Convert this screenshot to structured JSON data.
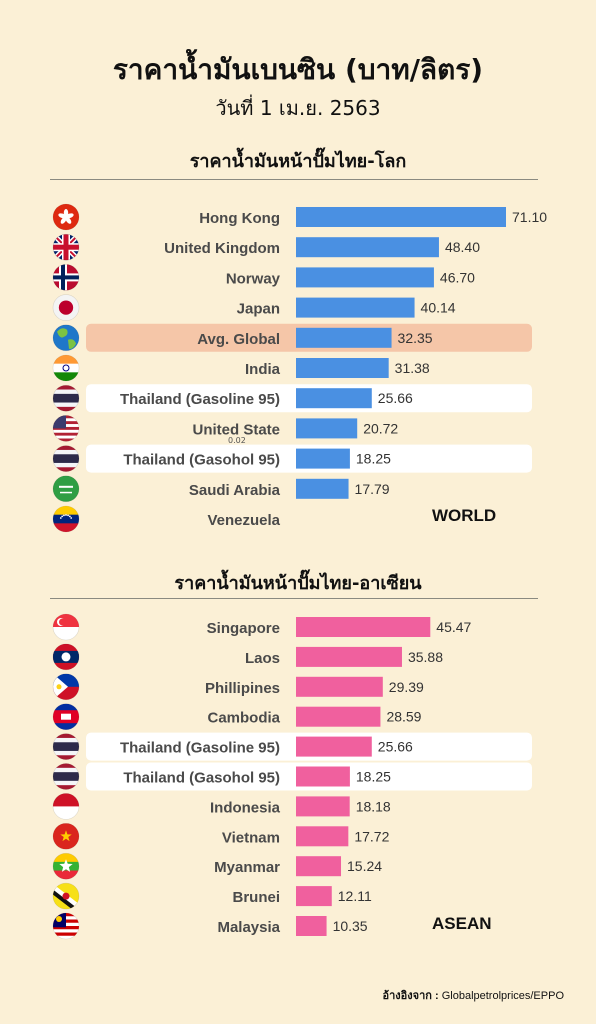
{
  "header": {
    "title": "ราคาน้ำมันเบนซิน (บาท/ลิตร)",
    "subtitle": "วันที่ 1 เม.ย. 2563"
  },
  "sections": [
    {
      "heading": "ราคาน้ำมันหน้าปั๊มไทย-โลก",
      "tag": "WORLD"
    },
    {
      "heading": "ราคาน้ำมันหน้าปั๊มไทย-อาเซียน",
      "tag": "ASEAN"
    }
  ],
  "stray_label": "0.02",
  "source": {
    "label": "อ้างอิงจาก :",
    "text": "Globalpetrolprices/EPPO"
  },
  "colors": {
    "background": "#fbf0d6",
    "world_bar": "#4a90e2",
    "asean_bar": "#f0609e",
    "avg_highlight": "#f5c6a8",
    "thai_highlight": "#ffffff"
  },
  "chart_data": [
    {
      "type": "bar",
      "orientation": "horizontal",
      "title": "ราคาน้ำมันหน้าปั๊มไทย-โลก",
      "categories": [
        "Hong Kong",
        "United Kingdom",
        "Norway",
        "Japan",
        "Avg. Global",
        "India",
        "Thailand (Gasoline 95)",
        "United State",
        "Thailand (Gasohol 95)",
        "Saudi Arabia",
        "Venezuela"
      ],
      "values": [
        71.1,
        48.4,
        46.7,
        40.14,
        32.35,
        31.38,
        25.66,
        20.72,
        18.25,
        17.79,
        0.02
      ],
      "value_labels": [
        "71.10",
        "48.40",
        "46.70",
        "40.14",
        "32.35",
        "31.38",
        "25.66",
        "20.72",
        "18.25",
        "17.79",
        ""
      ],
      "highlight": [
        "none",
        "none",
        "none",
        "none",
        "avg",
        "none",
        "thai",
        "none",
        "thai",
        "none",
        "none"
      ],
      "flags": [
        "hong-kong-flag-icon",
        "uk-flag-icon",
        "norway-flag-icon",
        "japan-flag-icon",
        "globe-icon",
        "india-flag-icon",
        "thailand-flag-icon",
        "usa-flag-icon",
        "thailand-flag-icon",
        "saudi-arabia-flag-icon",
        "venezuela-flag-icon"
      ],
      "xlim": [
        0,
        75
      ]
    },
    {
      "type": "bar",
      "orientation": "horizontal",
      "title": "ราคาน้ำมันหน้าปั๊มไทย-อาเซียน",
      "categories": [
        "Singapore",
        "Laos",
        "Phillipines",
        "Cambodia",
        "Thailand (Gasoline 95)",
        "Thailand (Gasohol 95)",
        "Indonesia",
        "Vietnam",
        "Myanmar",
        "Brunei",
        "Malaysia"
      ],
      "values": [
        45.47,
        35.88,
        29.39,
        28.59,
        25.66,
        18.25,
        18.18,
        17.72,
        15.24,
        12.11,
        10.35
      ],
      "value_labels": [
        "45.47",
        "35.88",
        "29.39",
        "28.59",
        "25.66",
        "18.25",
        "18.18",
        "17.72",
        "15.24",
        "12.11",
        "10.35"
      ],
      "highlight": [
        "none",
        "none",
        "none",
        "none",
        "thai",
        "thai",
        "none",
        "none",
        "none",
        "none",
        "none"
      ],
      "flags": [
        "singapore-flag-icon",
        "laos-flag-icon",
        "philippines-flag-icon",
        "cambodia-flag-icon",
        "thailand-flag-icon",
        "thailand-flag-icon",
        "indonesia-flag-icon",
        "vietnam-flag-icon",
        "myanmar-flag-icon",
        "brunei-flag-icon",
        "malaysia-flag-icon"
      ],
      "xlim": [
        0,
        75
      ]
    }
  ]
}
